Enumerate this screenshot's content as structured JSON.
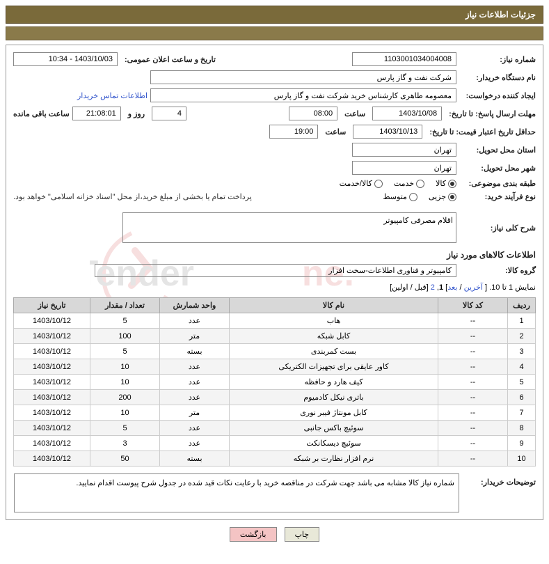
{
  "header": {
    "title": "جزئیات اطلاعات نیاز"
  },
  "fields": {
    "need_no_label": "شماره نیاز:",
    "need_no": "1103001034004008",
    "announce_label": "تاریخ و ساعت اعلان عمومی:",
    "announce_value": "1403/10/03 - 10:34",
    "buyer_org_label": "نام دستگاه خریدار:",
    "buyer_org": "شرکت نفت و گاز پارس",
    "requester_label": "ایجاد کننده درخواست:",
    "requester": "معصومه طاهری کارشناس خرید شرکت نفت و گاز پارس",
    "buyer_contact_link": "اطلاعات تماس خریدار",
    "deadline_label": "مهلت ارسال پاسخ: تا تاریخ:",
    "deadline_date": "1403/10/08",
    "time_label": "ساعت",
    "deadline_time": "08:00",
    "days_and_label": "روز و",
    "days_remaining": "4",
    "hours_remaining": "21:08:01",
    "remaining_suffix": "ساعت باقی مانده",
    "validity_label": "حداقل تاریخ اعتبار قیمت: تا تاریخ:",
    "validity_date": "1403/10/13",
    "validity_time": "19:00",
    "province_label": "استان محل تحویل:",
    "province": "تهران",
    "city_label": "شهر محل تحویل:",
    "city": "تهران",
    "category_label": "طبقه بندی موضوعی:",
    "cat_kala": "کالا",
    "cat_khadamat": "خدمت",
    "cat_both": "کالا/خدمت",
    "process_label": "نوع فرآیند خرید:",
    "proc_partial": "جزیی",
    "proc_medium": "متوسط",
    "payment_note": "پرداخت تمام یا بخشی از مبلغ خرید،از محل \"اسناد خزانه اسلامی\" خواهد بود.",
    "general_desc_label": "شرح کلی نیاز:",
    "general_desc": "اقلام مصرفی کامپیوتر",
    "goods_info_title": "اطلاعات کالاهای مورد نیاز",
    "goods_group_label": "گروه کالا:",
    "goods_group": "کامپیوتر و فناوری اطلاعات-سخت افزار",
    "buyer_notes_label": "توضیحات خریدار:",
    "buyer_notes": "شماره نیاز کالا مشابه می باشد جهت شرکت در مناقصه خرید با رعایت نکات قید شده در جدول شرح پیوست اقدام نمایید."
  },
  "pagination": {
    "text_prefix": "نمایش 1 تا 10. [ ",
    "last": "آخرین",
    "sep1": " / ",
    "next": "بعد",
    "sep2": "] ",
    "current": "1",
    "comma": ", ",
    "page2": "2",
    "suffix": " [قبل / اولین]"
  },
  "table": {
    "headers": {
      "row": "ردیف",
      "code": "کد کالا",
      "name": "نام کالا",
      "unit": "واحد شمارش",
      "qty": "تعداد / مقدار",
      "date": "تاریخ نیاز"
    },
    "rows": [
      {
        "n": "1",
        "code": "--",
        "name": "هاب",
        "unit": "عدد",
        "qty": "5",
        "date": "1403/10/12"
      },
      {
        "n": "2",
        "code": "--",
        "name": "کابل شبکه",
        "unit": "متر",
        "qty": "100",
        "date": "1403/10/12"
      },
      {
        "n": "3",
        "code": "--",
        "name": "بست کمربندی",
        "unit": "بسته",
        "qty": "5",
        "date": "1403/10/12"
      },
      {
        "n": "4",
        "code": "--",
        "name": "کاور عایقی برای تجهیزات الکتریکی",
        "unit": "عدد",
        "qty": "10",
        "date": "1403/10/12"
      },
      {
        "n": "5",
        "code": "--",
        "name": "کیف هارد و حافظه",
        "unit": "عدد",
        "qty": "10",
        "date": "1403/10/12"
      },
      {
        "n": "6",
        "code": "--",
        "name": "باتری نیکل کادمیوم",
        "unit": "عدد",
        "qty": "200",
        "date": "1403/10/12"
      },
      {
        "n": "7",
        "code": "--",
        "name": "کابل مونتاژ فیبر نوری",
        "unit": "متر",
        "qty": "10",
        "date": "1403/10/12"
      },
      {
        "n": "8",
        "code": "--",
        "name": "سوئیچ باکس جانبی",
        "unit": "عدد",
        "qty": "5",
        "date": "1403/10/12"
      },
      {
        "n": "9",
        "code": "--",
        "name": "سوئیچ دیسکانکت",
        "unit": "عدد",
        "qty": "3",
        "date": "1403/10/12"
      },
      {
        "n": "10",
        "code": "--",
        "name": "نرم افزار نظارت بر شبکه",
        "unit": "بسته",
        "qty": "50",
        "date": "1403/10/12"
      }
    ]
  },
  "columns_width": {
    "row": "40px",
    "code": "100px",
    "name": "auto",
    "unit": "100px",
    "qty": "100px",
    "date": "110px"
  },
  "buttons": {
    "print": "چاپ",
    "back": "بازگشت"
  },
  "colors": {
    "header_bg": "#7a6a3a",
    "accent_bg": "#8a7a4a",
    "link": "#3355cc",
    "th_bg": "#d8d8d8",
    "row_alt": "#f4f4f4",
    "btn_back_bg": "#f4c4c4",
    "watermark": "#cc3333"
  }
}
